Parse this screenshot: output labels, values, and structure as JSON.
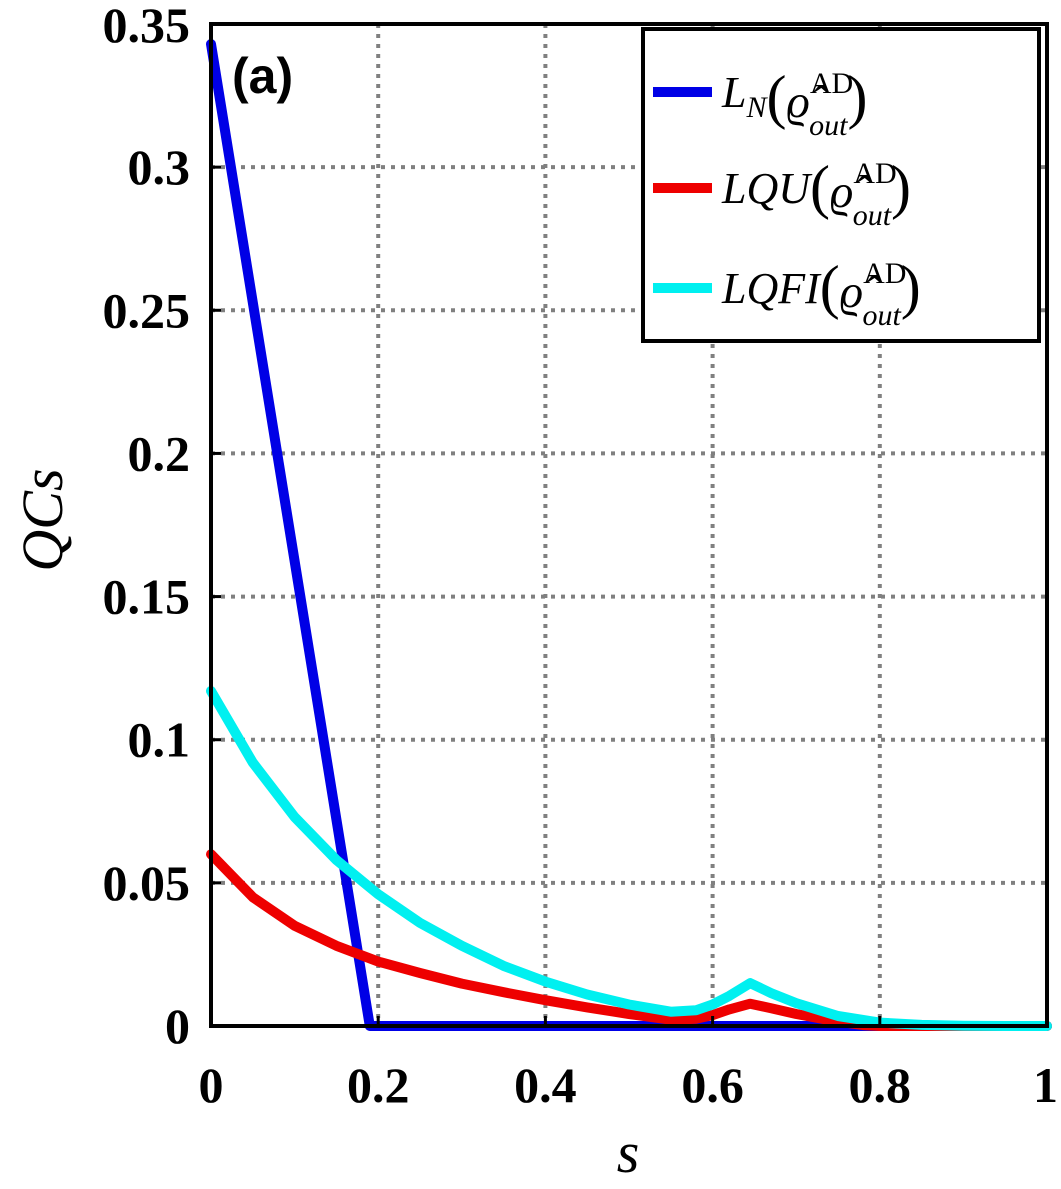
{
  "chart_data": {
    "type": "line",
    "panel_label": "(a)",
    "xlabel": "s",
    "ylabel": "QCs",
    "xlim": [
      0,
      1
    ],
    "ylim": [
      0,
      0.35
    ],
    "xticks": [
      0,
      0.2,
      0.4,
      0.6,
      0.8,
      1
    ],
    "xtick_labels": [
      "0",
      "0.2",
      "0.4",
      "0.6",
      "0.8",
      "1"
    ],
    "yticks": [
      0,
      0.05,
      0.1,
      0.15,
      0.2,
      0.25,
      0.3,
      0.35
    ],
    "ytick_labels": [
      "0",
      "0.05",
      "0.1",
      "0.15",
      "0.2",
      "0.25",
      "0.3",
      "0.35"
    ],
    "grid": true,
    "legend_position": "top-right",
    "series": [
      {
        "name": "L_N(ϱ̂_out^AD)",
        "color": "#0000e6",
        "x": [
          0,
          0.19,
          0.2,
          0.3,
          0.4,
          0.5,
          0.6,
          0.7,
          0.8,
          0.9,
          1.0
        ],
        "y": [
          0.343,
          0.0,
          0.0,
          0.0,
          0.0,
          0.0,
          0.0,
          0.0,
          0.0,
          0.0,
          0.0
        ]
      },
      {
        "name": "LQU(ϱ̂_out^AD)",
        "color": "#ee0000",
        "x": [
          0,
          0.05,
          0.1,
          0.15,
          0.2,
          0.25,
          0.3,
          0.35,
          0.4,
          0.45,
          0.5,
          0.55,
          0.58,
          0.6,
          0.62,
          0.645,
          0.67,
          0.7,
          0.75,
          0.78,
          0.8,
          0.9,
          1.0
        ],
        "y": [
          0.06,
          0.045,
          0.035,
          0.028,
          0.0225,
          0.0185,
          0.0148,
          0.0118,
          0.009,
          0.0065,
          0.0042,
          0.0022,
          0.0025,
          0.0038,
          0.0058,
          0.0078,
          0.0062,
          0.0042,
          0.0015,
          0.0003,
          0.0,
          0.0,
          0.0
        ]
      },
      {
        "name": "LQFI(ϱ̂_out^AD)",
        "color": "#00f0f0",
        "x": [
          0,
          0.05,
          0.1,
          0.15,
          0.2,
          0.25,
          0.3,
          0.35,
          0.4,
          0.45,
          0.5,
          0.55,
          0.58,
          0.6,
          0.62,
          0.645,
          0.67,
          0.7,
          0.75,
          0.8,
          0.85,
          0.9,
          0.95,
          1.0
        ],
        "y": [
          0.117,
          0.092,
          0.073,
          0.058,
          0.046,
          0.036,
          0.028,
          0.021,
          0.0155,
          0.011,
          0.0075,
          0.005,
          0.0055,
          0.0075,
          0.0105,
          0.015,
          0.0115,
          0.008,
          0.0035,
          0.0012,
          0.0004,
          0.0001,
          0.0,
          0.0
        ]
      }
    ]
  }
}
